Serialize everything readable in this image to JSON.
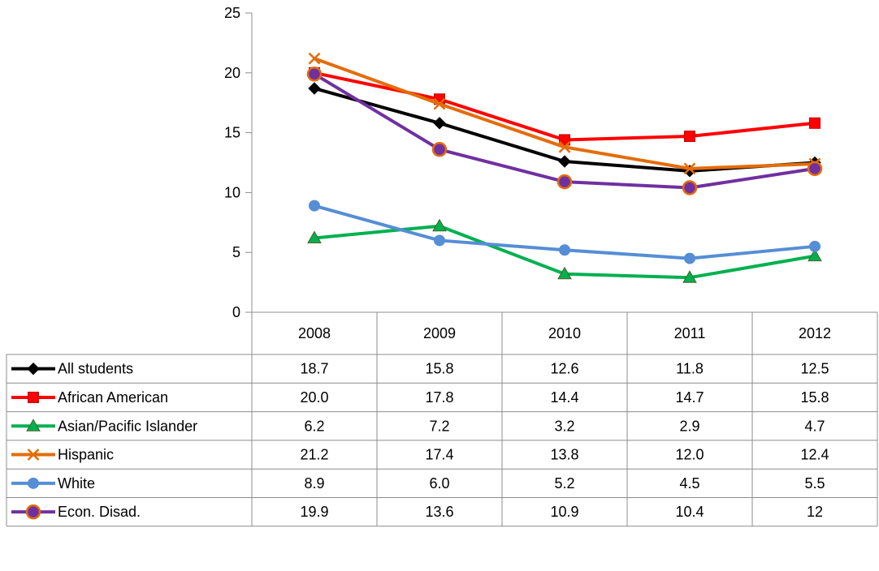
{
  "chart_data": {
    "type": "line",
    "categories": [
      "2008",
      "2009",
      "2010",
      "2011",
      "2012"
    ],
    "ylim": [
      0,
      25
    ],
    "yticks": [
      0,
      5,
      10,
      15,
      20,
      25
    ],
    "grid": false,
    "legend_placement": "data-table-left",
    "series": [
      {
        "name": "All students",
        "color": "#000000",
        "marker": "diamond",
        "values": [
          18.7,
          15.8,
          12.6,
          11.8,
          12.5
        ],
        "labels": [
          "18.7",
          "15.8",
          "12.6",
          "11.8",
          "12.5"
        ]
      },
      {
        "name": "African American",
        "color": "#ff0000",
        "marker": "square",
        "values": [
          20.0,
          17.8,
          14.4,
          14.7,
          15.8
        ],
        "labels": [
          "20.0",
          "17.8",
          "14.4",
          "14.7",
          "15.8"
        ]
      },
      {
        "name": "Asian/Pacific Islander",
        "color": "#00b050",
        "marker": "triangle",
        "values": [
          6.2,
          7.2,
          3.2,
          2.9,
          4.7
        ],
        "labels": [
          "6.2",
          "7.2",
          "3.2",
          "2.9",
          "4.7"
        ]
      },
      {
        "name": "Hispanic",
        "color": "#e46c0a",
        "marker": "x",
        "values": [
          21.2,
          17.4,
          13.8,
          12.0,
          12.4
        ],
        "labels": [
          "21.2",
          "17.4",
          "13.8",
          "12.0",
          "12.4"
        ]
      },
      {
        "name": "White",
        "color": "#558ed5",
        "marker": "circle",
        "values": [
          8.9,
          6.0,
          5.2,
          4.5,
          5.5
        ],
        "labels": [
          "8.9",
          "6.0",
          "5.2",
          "4.5",
          "5.5"
        ]
      },
      {
        "name": "Econ. Disad.",
        "color": "#7030a0",
        "marker": "circle-outlined",
        "outline": "#e46c0a",
        "values": [
          19.9,
          13.6,
          10.9,
          10.4,
          12
        ],
        "labels": [
          "19.9",
          "13.6",
          "10.9",
          "10.4",
          "12"
        ]
      }
    ]
  }
}
